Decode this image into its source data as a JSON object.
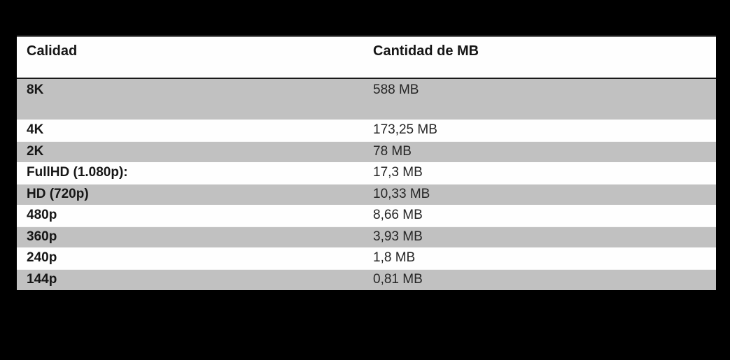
{
  "colors": {
    "canvas_bg": "#000000",
    "table_bg": "#fefefe",
    "stripe_gray": "#c1c1c1",
    "top_rule": "#5e5e5e",
    "header_rule": "#1a1a1a",
    "text_strong": "#161616",
    "text_value": "#262626"
  },
  "table": {
    "columns": [
      {
        "label": "Calidad"
      },
      {
        "label": "Cantidad de MB"
      }
    ],
    "rows": [
      {
        "quality": "8K",
        "size": "588 MB"
      },
      {
        "quality": "4K",
        "size": "173,25 MB"
      },
      {
        "quality": "2K",
        "size": "78 MB"
      },
      {
        "quality": "FullHD (1.080p):",
        "size": "17,3 MB"
      },
      {
        "quality": "HD (720p)",
        "size": "10,33 MB"
      },
      {
        "quality": "480p",
        "size": "8,66 MB"
      },
      {
        "quality": "360p",
        "size": "3,93 MB"
      },
      {
        "quality": "240p",
        "size": "1,8 MB"
      },
      {
        "quality": "144p",
        "size": "0,81 MB"
      }
    ]
  },
  "chart_data": {
    "type": "table",
    "title": "",
    "columns": [
      "Calidad",
      "Cantidad de MB"
    ],
    "rows": [
      [
        "8K",
        "588 MB"
      ],
      [
        "4K",
        "173,25 MB"
      ],
      [
        "2K",
        "78 MB"
      ],
      [
        "FullHD (1.080p):",
        "17,3 MB"
      ],
      [
        "HD (720p)",
        "10,33 MB"
      ],
      [
        "480p",
        "8,66 MB"
      ],
      [
        "360p",
        "3,93 MB"
      ],
      [
        "240p",
        "1,8 MB"
      ],
      [
        "144p",
        "0,81 MB"
      ]
    ],
    "categories": [
      "8K",
      "4K",
      "2K",
      "FullHD (1.080p)",
      "HD (720p)",
      "480p",
      "360p",
      "240p",
      "144p"
    ],
    "values": [
      588,
      173.25,
      78,
      17.3,
      10.33,
      8.66,
      3.93,
      1.8,
      0.81
    ],
    "ylabel": "Cantidad de MB",
    "xlabel": "Calidad",
    "layout": {
      "stripe_style": "alternating",
      "first_data_row_shaded": true,
      "grid": false,
      "legend": "none"
    }
  }
}
